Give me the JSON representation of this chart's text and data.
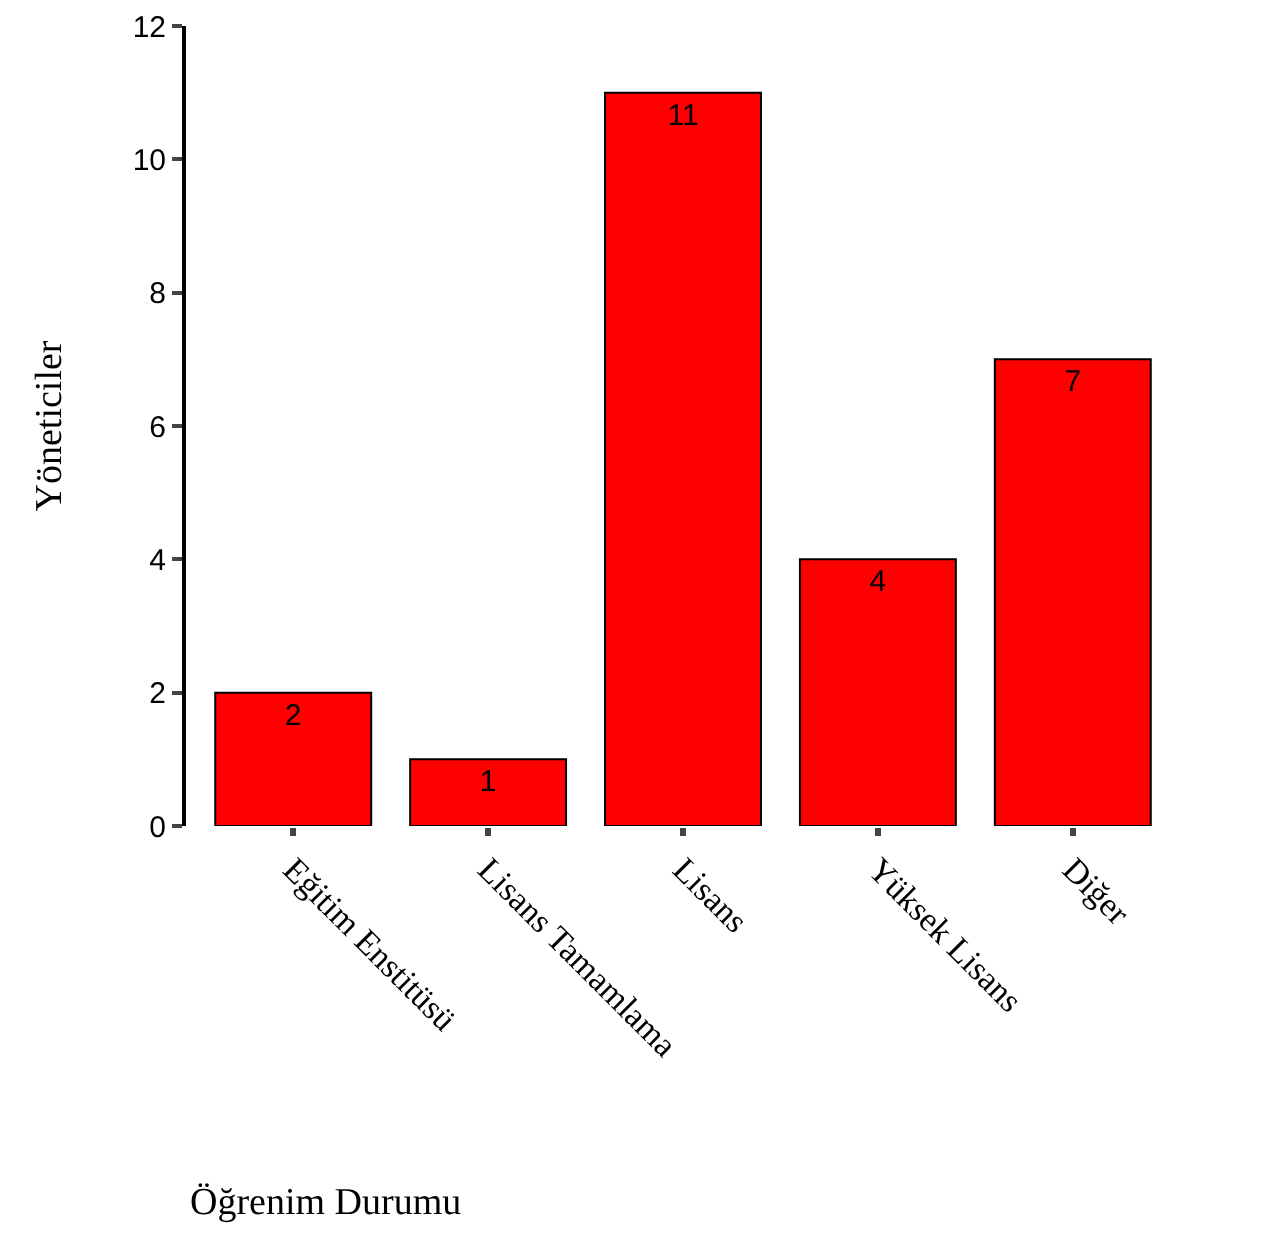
{
  "chart_data": {
    "type": "bar",
    "xlabel": "Öğrenim Durumu",
    "ylabel": "Yöneticiler",
    "categories": [
      "Eğitim Enstitüsü",
      "Lisans Tamamlama",
      "Lisans",
      "Yüksek Lisans",
      "Diğer"
    ],
    "values": [
      2,
      1,
      11,
      4,
      7
    ],
    "color": "#ff0000",
    "data_labels": true,
    "ylim": [
      0,
      12
    ],
    "yticks": [
      0,
      2,
      4,
      6,
      8,
      10,
      12
    ],
    "grid": false,
    "legend": false
  }
}
